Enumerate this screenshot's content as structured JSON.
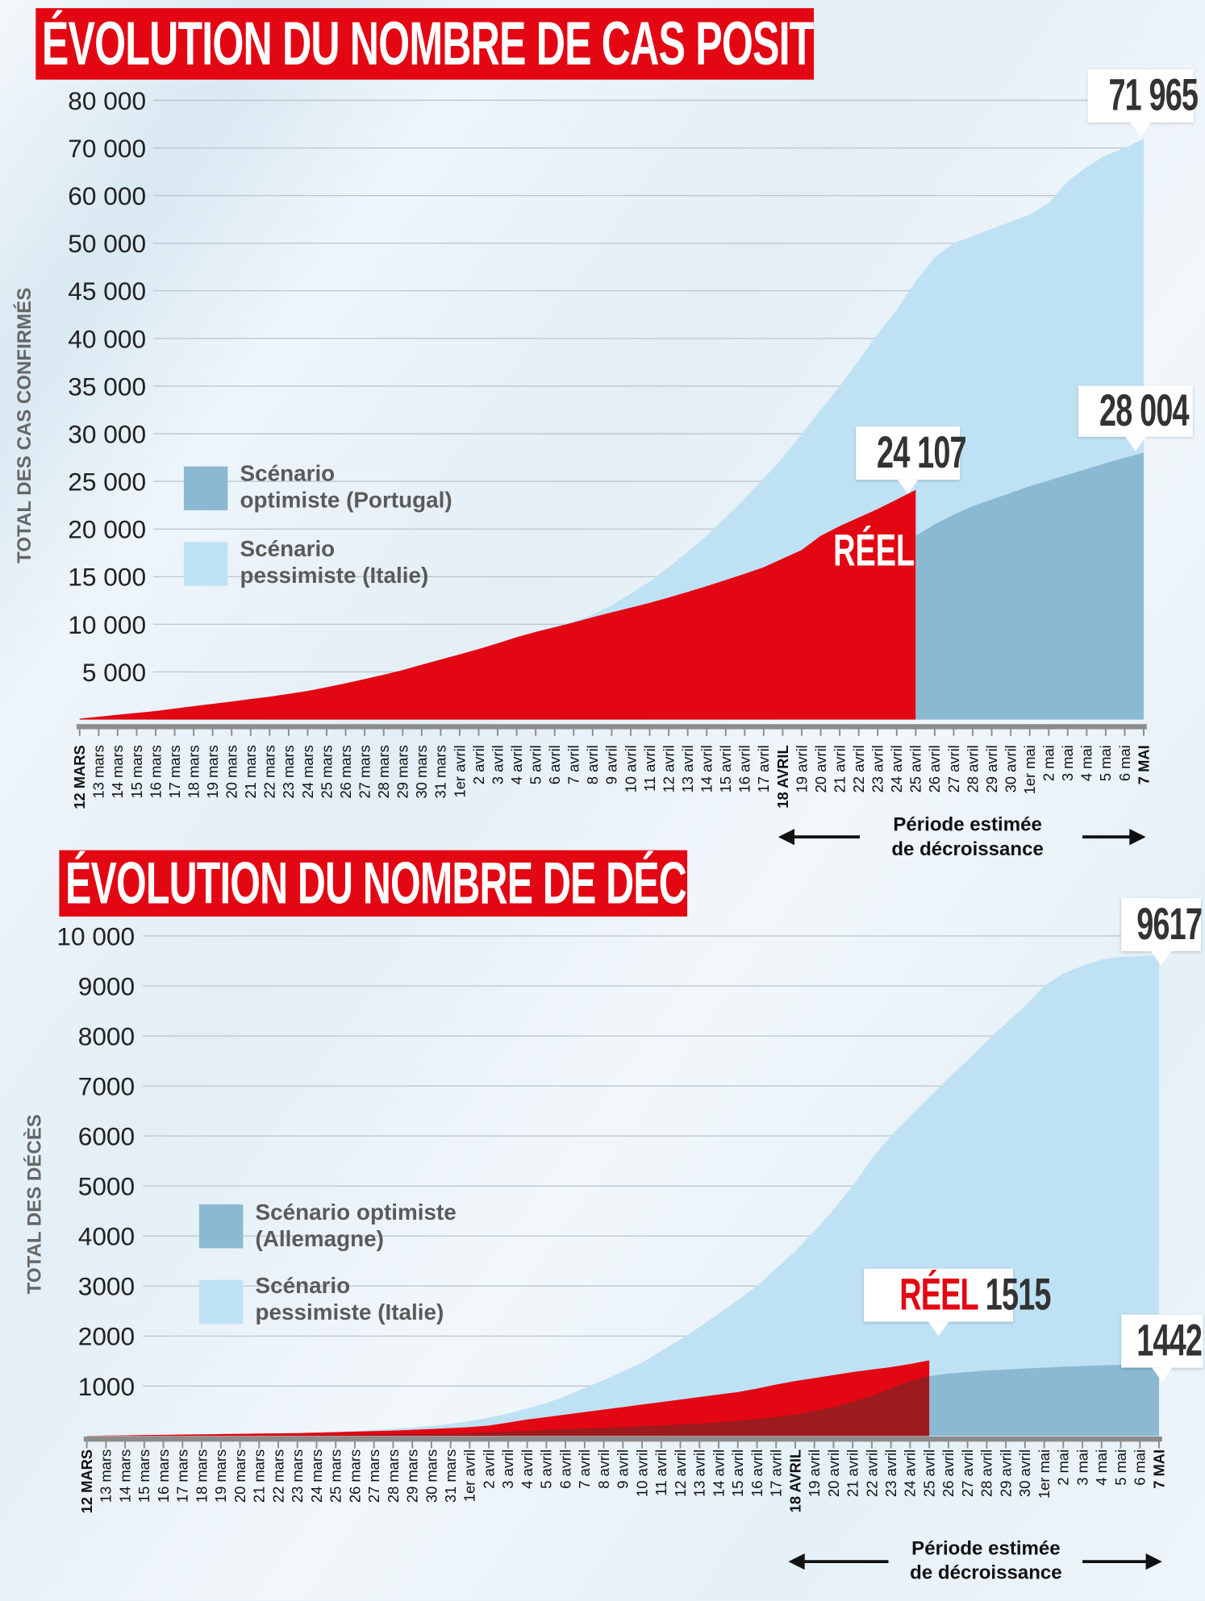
{
  "colors": {
    "real": "#e30613",
    "pessimist": "#bfe1f4",
    "optimist": "#8bb9d2",
    "optimist_overlap": "#9b1b1e",
    "banner": "#e30613"
  },
  "dates": [
    "12 MARS",
    "13 mars",
    "14 mars",
    "15 mars",
    "16 mars",
    "17 mars",
    "18 mars",
    "19 mars",
    "20 mars",
    "21 mars",
    "22 mars",
    "23 mars",
    "24 mars",
    "25 mars",
    "26 mars",
    "27 mars",
    "28 mars",
    "29 mars",
    "30 mars",
    "31 mars",
    "1er avril",
    "2 avril",
    "3 avril",
    "4 avril",
    "5 avril",
    "6 avril",
    "7 avril",
    "8 avril",
    "9 avril",
    "10 avril",
    "11 avril",
    "12 avril",
    "13 avril",
    "14 avril",
    "15 avril",
    "16 avril",
    "17 avril",
    "18 AVRIL",
    "19 avril",
    "20 avril",
    "21 avril",
    "22 avril",
    "23 avril",
    "24 avril",
    "25 avril",
    "26 avril",
    "27 avril",
    "28 avril",
    "29 avril",
    "30 avril",
    "1er mai",
    "2 mai",
    "3 mai",
    "4 mai",
    "5 mai",
    "6 mai",
    "7 MAI"
  ],
  "chart_data": [
    {
      "type": "area",
      "title": "ÉVOLUTION  DU NOMBRE DE CAS POSITIFS",
      "ylabel": "TOTAL DES CAS CONFIRMÉS",
      "yticks": [
        5000,
        10000,
        15000,
        20000,
        25000,
        30000,
        35000,
        40000,
        45000,
        50000,
        60000,
        70000,
        80000
      ],
      "ytick_labels": [
        "5 000",
        "10 000",
        "15 000",
        "20 000",
        "25 000",
        "30 000",
        "35 000",
        "40 000",
        "45 000",
        "50 000",
        "60 000",
        "70 000",
        "80 000"
      ],
      "ylim": [
        0,
        80000
      ],
      "grid": true,
      "series": [
        {
          "key": "pessimist",
          "name": "Scénario pessimiste (Italie)",
          "start": 0,
          "values": [
            100,
            300,
            500,
            700,
            900,
            1150,
            1400,
            1650,
            1900,
            2150,
            2400,
            2700,
            3000,
            3400,
            3800,
            4250,
            4700,
            5200,
            5750,
            6300,
            6850,
            7400,
            8000,
            8650,
            9200,
            9700,
            10300,
            11000,
            12000,
            13200,
            14500,
            16000,
            17600,
            19300,
            21200,
            23200,
            25300,
            27500,
            30000,
            32500,
            35000,
            37700,
            40500,
            43000,
            46000,
            48500,
            50000,
            51500,
            53000,
            54500,
            56000,
            58500,
            63000,
            66000,
            68500,
            70000,
            71965
          ]
        },
        {
          "key": "real",
          "name": "RÉEL",
          "start": 0,
          "values": [
            100,
            300,
            500,
            700,
            900,
            1150,
            1400,
            1650,
            1900,
            2150,
            2400,
            2700,
            3000,
            3400,
            3800,
            4250,
            4700,
            5200,
            5750,
            6300,
            6850,
            7400,
            8000,
            8650,
            9200,
            9700,
            10200,
            10750,
            11250,
            11750,
            12250,
            12800,
            13400,
            14000,
            14650,
            15300,
            16000,
            16900,
            17800,
            19300,
            20300,
            21200,
            22100,
            23100,
            24107
          ]
        },
        {
          "key": "optimist",
          "name": "Scénario optimiste (Portugal)",
          "start": 44,
          "values": [
            19300,
            20500,
            21500,
            22400,
            23100,
            23800,
            24500,
            25100,
            25700,
            26300,
            26900,
            27500,
            28004
          ]
        }
      ],
      "legend": {
        "optimist": [
          "Scénario",
          "optimiste (Portugal)"
        ],
        "pessimist": [
          "Scénario",
          "pessimiste (Italie)"
        ]
      },
      "callouts": {
        "pessimist_end": "71 965",
        "optimist_end": "28 004",
        "real_end": "24 107",
        "real_label": "RÉEL"
      },
      "period": [
        "Période estimée",
        "de décroissance"
      ]
    },
    {
      "type": "area",
      "title": "ÉVOLUTION DU NOMBRE DE DÉCÈS",
      "ylabel": "TOTAL DES DÉCÈS",
      "yticks": [
        1000,
        2000,
        3000,
        4000,
        5000,
        6000,
        7000,
        8000,
        9000,
        10000
      ],
      "ytick_labels": [
        "1000",
        "2000",
        "3000",
        "4000",
        "5000",
        "6000",
        "7000",
        "8000",
        "9000",
        "10 000"
      ],
      "ylim": [
        0,
        10000
      ],
      "grid": true,
      "series": [
        {
          "key": "pessimist",
          "name": "Scénario pessimiste (Italie)",
          "start": 0,
          "values": [
            5,
            10,
            15,
            20,
            25,
            30,
            35,
            40,
            45,
            50,
            55,
            60,
            70,
            80,
            100,
            120,
            140,
            170,
            200,
            245,
            300,
            370,
            450,
            550,
            660,
            800,
            960,
            1120,
            1290,
            1470,
            1700,
            1930,
            2180,
            2450,
            2720,
            3000,
            3350,
            3700,
            4100,
            4530,
            5000,
            5550,
            6000,
            6400,
            6780,
            7150,
            7520,
            7900,
            8250,
            8600,
            9000,
            9250,
            9400,
            9530,
            9580,
            9600,
            9617
          ]
        },
        {
          "key": "real",
          "name": "RÉEL",
          "start": 0,
          "values": [
            5,
            10,
            15,
            20,
            25,
            30,
            35,
            40,
            45,
            50,
            55,
            60,
            70,
            80,
            90,
            100,
            110,
            125,
            140,
            160,
            180,
            210,
            270,
            330,
            380,
            430,
            480,
            530,
            580,
            630,
            680,
            730,
            780,
            830,
            880,
            950,
            1030,
            1100,
            1160,
            1220,
            1280,
            1330,
            1380,
            1440,
            1515
          ]
        },
        {
          "key": "optimist",
          "name": "Scénario optimiste (Allemagne)",
          "start": 0,
          "values": [
            2,
            3,
            4,
            5,
            6,
            7,
            8,
            9,
            10,
            12,
            14,
            16,
            18,
            20,
            24,
            28,
            32,
            38,
            44,
            52,
            60,
            75,
            90,
            105,
            120,
            135,
            150,
            165,
            180,
            195,
            210,
            230,
            250,
            275,
            300,
            340,
            380,
            430,
            500,
            580,
            680,
            800,
            950,
            1100,
            1200,
            1250,
            1280,
            1310,
            1330,
            1350,
            1370,
            1385,
            1400,
            1415,
            1425,
            1435,
            1442
          ]
        }
      ],
      "legend": {
        "optimist": [
          "Scénario optimiste",
          "(Allemagne)"
        ],
        "pessimist": [
          "Scénario",
          "pessimiste (Italie)"
        ]
      },
      "callouts": {
        "pessimist_end": "9617",
        "optimist_end": "1442",
        "real_word": "RÉEL",
        "real_end": "1515"
      },
      "period": [
        "Période estimée",
        "de décroissance"
      ]
    }
  ]
}
